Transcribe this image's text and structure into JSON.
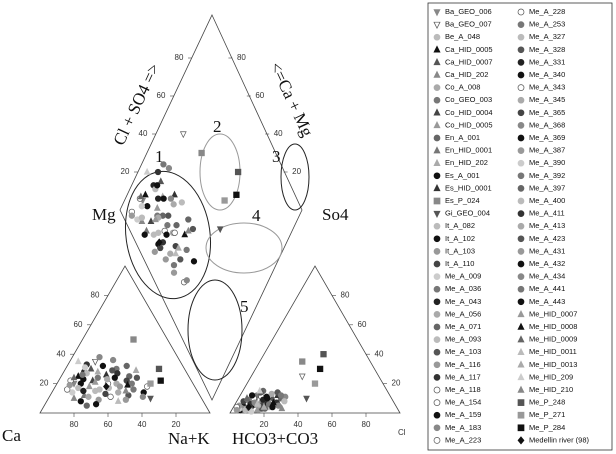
{
  "chart_data": {
    "type": "piper",
    "labels": {
      "mg": "Mg",
      "so4": "So4",
      "ca": "Ca",
      "nak": "Na+K",
      "hco3": "HCO3+CO3",
      "cl": "Cl",
      "cl_so4": "Cl + SO4 =>",
      "ca_mg": "<=Ca + Mg"
    },
    "annotations": [
      "1",
      "2",
      "3",
      "4",
      "5"
    ],
    "ticks": [
      20,
      40,
      60,
      80
    ],
    "series": [
      {
        "name": "Ba_GEO_006",
        "marker": "tri-down",
        "color": "#888888",
        "cation": [
          70,
          20
        ],
        "anion": [
          10,
          5
        ]
      },
      {
        "name": "Ba_GEO_007",
        "marker": "tri-down",
        "color": "#ffffff",
        "cation": [
          50,
          35
        ],
        "anion": [
          30,
          25
        ]
      },
      {
        "name": "Be_A_048",
        "marker": "circle",
        "color": "#bbbbbb",
        "cation": [
          60,
          15
        ],
        "anion": [
          8,
          4
        ]
      },
      {
        "name": "Ca_HID_0005",
        "marker": "tri",
        "color": "#111111",
        "cation": [
          65,
          25
        ],
        "anion": [
          12,
          6
        ]
      },
      {
        "name": "Ca_HID_0007",
        "marker": "tri",
        "color": "#555555",
        "cation": [
          55,
          30
        ],
        "anion": [
          20,
          10
        ]
      },
      {
        "name": "Ca_HID_202",
        "marker": "tri",
        "color": "#888888",
        "cation": [
          75,
          10
        ],
        "anion": [
          6,
          3
        ]
      },
      {
        "name": "Co_A_008",
        "marker": "circle",
        "color": "#aaaaaa",
        "cation": [
          45,
          20
        ],
        "anion": [
          15,
          8
        ]
      },
      {
        "name": "Co_GEO_003",
        "marker": "circle",
        "color": "#777777",
        "cation": [
          40,
          30
        ],
        "anion": [
          10,
          12
        ]
      },
      {
        "name": "Co_HID_0004",
        "marker": "tri",
        "color": "#444444",
        "cation": [
          58,
          22
        ],
        "anion": [
          9,
          5
        ]
      },
      {
        "name": "Co_HID_0005",
        "marker": "tri",
        "color": "#999999",
        "cation": [
          62,
          18
        ],
        "anion": [
          14,
          7
        ]
      },
      {
        "name": "En_A_001",
        "marker": "circle",
        "color": "#666666",
        "cation": [
          35,
          25
        ],
        "anion": [
          25,
          10
        ]
      },
      {
        "name": "En_HID_0001",
        "marker": "tri",
        "color": "#777777",
        "cation": [
          68,
          12
        ],
        "anion": [
          7,
          2
        ]
      },
      {
        "name": "En_HID_202",
        "marker": "tri",
        "color": "#aaaaaa",
        "cation": [
          52,
          28
        ],
        "anion": [
          18,
          9
        ]
      },
      {
        "name": "Es_A_001",
        "marker": "circle",
        "color": "#111111",
        "cation": [
          72,
          8
        ],
        "anion": [
          5,
          2
        ]
      },
      {
        "name": "Es_HID_0001",
        "marker": "tri",
        "color": "#333333",
        "cation": [
          48,
          26
        ],
        "anion": [
          22,
          12
        ]
      },
      {
        "name": "Es_P_024",
        "marker": "square",
        "color": "#888888",
        "cation": [
          20,
          50
        ],
        "anion": [
          25,
          35
        ]
      },
      {
        "name": "Gi_GEO_004",
        "marker": "tri-down",
        "color": "#555555",
        "cation": [
          30,
          10
        ],
        "anion": [
          40,
          10
        ]
      },
      {
        "name": "It_A_082",
        "marker": "circle",
        "color": "#bbbbbb",
        "cation": [
          57,
          16
        ],
        "anion": [
          11,
          4
        ]
      },
      {
        "name": "It_A_102",
        "marker": "circle",
        "color": "#111111",
        "cation": [
          66,
          20
        ],
        "anion": [
          13,
          3
        ]
      },
      {
        "name": "It_A_103",
        "marker": "circle",
        "color": "#999999",
        "cation": [
          44,
          18
        ],
        "anion": [
          6,
          6
        ]
      },
      {
        "name": "It_A_110",
        "marker": "circle",
        "color": "#444444",
        "cation": [
          38,
          22
        ],
        "anion": [
          16,
          5
        ]
      },
      {
        "name": "Me_A_009",
        "marker": "circle",
        "color": "#cccccc",
        "cation": [
          74,
          14
        ],
        "anion": [
          4,
          3
        ]
      },
      {
        "name": "Me_A_036",
        "marker": "circle",
        "color": "#777777",
        "cation": [
          54,
          24
        ],
        "anion": [
          10,
          9
        ]
      },
      {
        "name": "Me_A_043",
        "marker": "circle",
        "color": "#222222",
        "cation": [
          60,
          28
        ],
        "anion": [
          19,
          6
        ]
      },
      {
        "name": "Me_A_056",
        "marker": "circle",
        "color": "#aaaaaa",
        "cation": [
          47,
          14
        ],
        "anion": [
          8,
          8
        ]
      },
      {
        "name": "Me_A_071",
        "marker": "circle",
        "color": "#666666",
        "cation": [
          33,
          32
        ],
        "anion": [
          12,
          15
        ]
      },
      {
        "name": "Me_A_093",
        "marker": "circle",
        "color": "#bbbbbb",
        "cation": [
          69,
          17
        ],
        "anion": [
          21,
          4
        ]
      },
      {
        "name": "Me_A_103",
        "marker": "circle",
        "color": "#555555",
        "cation": [
          42,
          12
        ],
        "anion": [
          17,
          3
        ]
      },
      {
        "name": "Me_A_116",
        "marker": "circle",
        "color": "#999999",
        "cation": [
          61,
          9
        ],
        "anion": [
          3,
          5
        ]
      },
      {
        "name": "Me_A_117",
        "marker": "circle",
        "color": "#333333",
        "cation": [
          56,
          33
        ],
        "anion": [
          24,
          7
        ]
      },
      {
        "name": "Me_A_118",
        "marker": "circle",
        "color": "#ffffff",
        "cation": [
          50,
          20
        ],
        "anion": [
          9,
          10
        ]
      },
      {
        "name": "Me_A_154",
        "marker": "circle",
        "color": "#ffffff",
        "cation": [
          28,
          18
        ],
        "anion": [
          14,
          2
        ]
      },
      {
        "name": "Me_A_159",
        "marker": "circle",
        "color": "#111111",
        "cation": [
          64,
          6
        ],
        "anion": [
          5,
          7
        ]
      },
      {
        "name": "Me_A_183",
        "marker": "circle",
        "color": "#888888",
        "cation": [
          46,
          38
        ],
        "anion": [
          27,
          11
        ]
      },
      {
        "name": "Me_A_223",
        "marker": "circle",
        "color": "#ffffff",
        "cation": [
          71,
          22
        ],
        "anion": [
          2,
          4
        ]
      },
      {
        "name": "Me_A_228",
        "marker": "circle",
        "color": "#ffffff",
        "cation": [
          53,
          11
        ],
        "anion": [
          13,
          11
        ]
      },
      {
        "name": "Me_A_253",
        "marker": "circle",
        "color": "#777777",
        "cation": [
          37,
          16
        ],
        "anion": [
          20,
          6
        ]
      },
      {
        "name": "Me_A_327",
        "marker": "circle",
        "color": "#bbbbbb",
        "cation": [
          59,
          27
        ],
        "anion": [
          8,
          2
        ]
      },
      {
        "name": "Me_A_328",
        "marker": "circle",
        "color": "#555555",
        "cation": [
          43,
          29
        ],
        "anion": [
          11,
          14
        ]
      },
      {
        "name": "Me_A_331",
        "marker": "circle",
        "color": "#222222",
        "cation": [
          67,
          15
        ],
        "anion": [
          15,
          9
        ]
      },
      {
        "name": "Me_A_340",
        "marker": "circle",
        "color": "#111111",
        "cation": [
          32,
          14
        ],
        "anion": [
          23,
          4
        ]
      },
      {
        "name": "Me_A_343",
        "marker": "circle",
        "color": "#ffffff",
        "cation": [
          76,
          16
        ],
        "anion": [
          7,
          7
        ]
      },
      {
        "name": "Me_A_345",
        "marker": "circle",
        "color": "#aaaaaa",
        "cation": [
          49,
          23
        ],
        "anion": [
          18,
          13
        ]
      },
      {
        "name": "Me_A_365",
        "marker": "circle",
        "color": "#444444",
        "cation": [
          55,
          13
        ],
        "anion": [
          4,
          8
        ]
      },
      {
        "name": "Me_A_368",
        "marker": "circle",
        "color": "#888888",
        "cation": [
          39,
          36
        ],
        "anion": [
          26,
          5
        ]
      },
      {
        "name": "Me_A_369",
        "marker": "circle",
        "color": "#111111",
        "cation": [
          63,
          23
        ],
        "anion": [
          16,
          11
        ]
      },
      {
        "name": "Me_A_387",
        "marker": "circle",
        "color": "#999999",
        "cation": [
          45,
          9
        ],
        "anion": [
          10,
          3
        ]
      },
      {
        "name": "Me_A_390",
        "marker": "circle",
        "color": "#cccccc",
        "cation": [
          58,
          31
        ],
        "anion": [
          12,
          1
        ]
      },
      {
        "name": "Me_A_392",
        "marker": "circle",
        "color": "#777777",
        "cation": [
          36,
          20
        ],
        "anion": [
          6,
          9
        ]
      },
      {
        "name": "Me_A_397",
        "marker": "circle",
        "color": "#666666",
        "cation": [
          70,
          5
        ],
        "anion": [
          19,
          3
        ]
      },
      {
        "name": "Me_A_400",
        "marker": "circle",
        "color": "#bbbbbb",
        "cation": [
          51,
          17
        ],
        "anion": [
          28,
          8
        ]
      },
      {
        "name": "Me_A_411",
        "marker": "circle",
        "color": "#333333",
        "cation": [
          41,
          27
        ],
        "anion": [
          9,
          6
        ]
      },
      {
        "name": "Me_A_413",
        "marker": "circle",
        "color": "#aaaaaa",
        "cation": [
          66,
          11
        ],
        "anion": [
          14,
          5
        ]
      },
      {
        "name": "Me_A_423",
        "marker": "circle",
        "color": "#555555",
        "cation": [
          31,
          24
        ],
        "anion": [
          21,
          14
        ]
      },
      {
        "name": "Me_A_431",
        "marker": "circle",
        "color": "#999999",
        "cation": [
          73,
          19
        ],
        "anion": [
          3,
          2
        ]
      },
      {
        "name": "Me_A_432",
        "marker": "circle",
        "color": "#111111",
        "cation": [
          47,
          32
        ],
        "anion": [
          17,
          10
        ]
      },
      {
        "name": "Me_A_434",
        "marker": "circle",
        "color": "#888888",
        "cation": [
          34,
          11
        ],
        "anion": [
          11,
          7
        ]
      },
      {
        "name": "Me_A_441",
        "marker": "circle",
        "color": "#777777",
        "cation": [
          62,
          26
        ],
        "anion": [
          24,
          12
        ]
      },
      {
        "name": "Me_A_443",
        "marker": "circle",
        "color": "#111111",
        "cation": [
          44,
          24
        ],
        "anion": [
          7,
          12
        ]
      },
      {
        "name": "Me_HID_0007",
        "marker": "tri",
        "color": "#999999",
        "cation": [
          57,
          21
        ],
        "anion": [
          15,
          2
        ]
      },
      {
        "name": "Me_HID_0008",
        "marker": "tri",
        "color": "#111111",
        "cation": [
          39,
          19
        ],
        "anion": [
          22,
          7
        ]
      },
      {
        "name": "Me_HID_0009",
        "marker": "tri",
        "color": "#666666",
        "cation": [
          68,
          24
        ],
        "anion": [
          5,
          10
        ]
      },
      {
        "name": "Me_HID_0011",
        "marker": "tri",
        "color": "#bbbbbb",
        "cation": [
          50,
          8
        ],
        "anion": [
          13,
          6
        ]
      },
      {
        "name": "Me_HID_0013",
        "marker": "tri",
        "color": "#aaaaaa",
        "cation": [
          29,
          29
        ],
        "anion": [
          18,
          4
        ]
      },
      {
        "name": "Me_HID_209",
        "marker": "tri",
        "color": "#cccccc",
        "cation": [
          60,
          35
        ],
        "anion": [
          10,
          15
        ]
      },
      {
        "name": "Me_HID_210",
        "marker": "tri",
        "color": "#888888",
        "cation": [
          42,
          15
        ],
        "anion": [
          29,
          3
        ]
      },
      {
        "name": "Me_P_248",
        "marker": "square",
        "color": "#555555",
        "cation": [
          15,
          30
        ],
        "anion": [
          35,
          40
        ]
      },
      {
        "name": "Me_P_271",
        "marker": "square",
        "color": "#999999",
        "cation": [
          25,
          20
        ],
        "anion": [
          40,
          20
        ]
      },
      {
        "name": "Me_P_284",
        "marker": "square",
        "color": "#111111",
        "cation": [
          18,
          22
        ],
        "anion": [
          38,
          30
        ]
      },
      {
        "name": "Medellin river (98)",
        "marker": "diamond",
        "color": "#111111",
        "cation": [
          52,
          18
        ],
        "anion": [
          9,
          4
        ]
      }
    ]
  }
}
